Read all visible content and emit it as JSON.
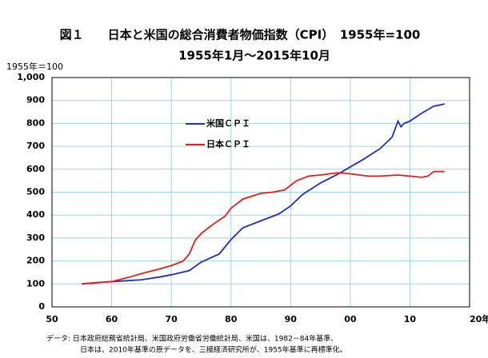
{
  "chart_data": {
    "type": "line",
    "title": "図１　　日本と米国の総合消費者物価指数（CPI）　1955年=100",
    "subtitle": "1955年1月～2015年10月",
    "y_label": "1955年＝100",
    "notes": [
      "データ:  日本政府総務省統計局、米国政府労働省労働統計局、米国は、1982－84年基準、",
      "日本は、2010年基準の原データを、三極経済研究所が、1955年基準に再標準化。"
    ],
    "grid": true,
    "xlim": [
      1950,
      2020
    ],
    "xticks": [
      {
        "value": 1950,
        "label": "50"
      },
      {
        "value": 1960,
        "label": "60"
      },
      {
        "value": 1970,
        "label": "70"
      },
      {
        "value": 1980,
        "label": "80"
      },
      {
        "value": 1990,
        "label": "90"
      },
      {
        "value": 2000,
        "label": "00"
      },
      {
        "value": 2010,
        "label": "10"
      },
      {
        "value": 2020,
        "label": "20年"
      }
    ],
    "ylim": [
      0,
      1000
    ],
    "yticks": [
      0,
      100,
      200,
      300,
      400,
      500,
      600,
      700,
      800,
      900,
      {
        "value": 1000,
        "label": "1,000"
      }
    ],
    "series": [
      {
        "name": "米国ＣＰＩ",
        "color": "#1f2fb0",
        "x": [
          1955,
          1957,
          1960,
          1965,
          1968,
          1970,
          1973,
          1975,
          1978,
          1980,
          1982,
          1985,
          1988,
          1990,
          1992,
          1995,
          1998,
          2000,
          2002,
          2005,
          2007,
          2008,
          2008.5,
          2009,
          2010,
          2012,
          2014,
          2015,
          2015.8
        ],
        "values": [
          100,
          105,
          110,
          118,
          130,
          140,
          158,
          195,
          230,
          293,
          345,
          375,
          405,
          440,
          490,
          540,
          580,
          610,
          640,
          690,
          740,
          810,
          785,
          800,
          810,
          845,
          875,
          880,
          885
        ]
      },
      {
        "name": "日本ＣＰＩ",
        "color": "#e0201b",
        "x": [
          1955,
          1960,
          1963,
          1965,
          1968,
          1970,
          1972,
          1973,
          1974,
          1975,
          1977,
          1979,
          1980,
          1982,
          1985,
          1987,
          1989,
          1991,
          1993,
          1995,
          1998,
          2000,
          2003,
          2005,
          2008,
          2010,
          2012,
          2013,
          2014,
          2015.8
        ],
        "values": [
          100,
          110,
          130,
          145,
          165,
          180,
          200,
          230,
          290,
          320,
          360,
          395,
          430,
          470,
          495,
          500,
          510,
          550,
          570,
          575,
          585,
          580,
          570,
          570,
          575,
          570,
          565,
          570,
          590,
          590
        ]
      }
    ]
  }
}
